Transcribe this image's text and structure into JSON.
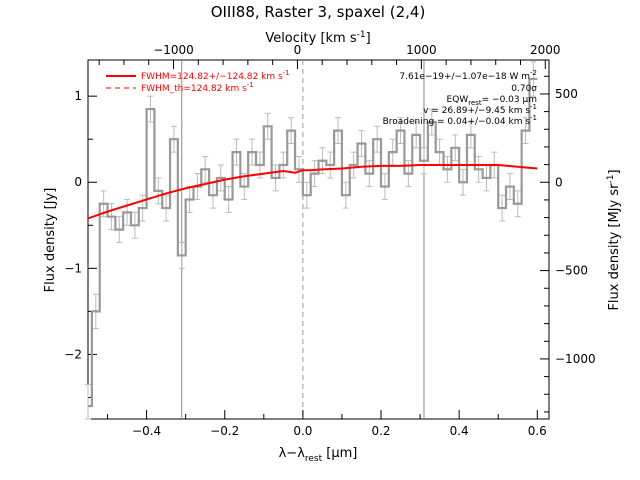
{
  "chart_data": {
    "type": "line",
    "title": "OIII88, Raster 3, spaxel (2,4)",
    "top_axis_label": "Velocity [km s",
    "top_axis_label_sup": "-1",
    "top_axis_label_end": "]",
    "xlabel_main": "λ−λ",
    "xlabel_sub": "rest",
    "xlabel_unit": " [μm]",
    "ylabel_left": "Flux density [Jy]",
    "ylabel_right": "Flux density [MJy sr",
    "ylabel_right_sup": "-1",
    "ylabel_right_end": "]",
    "xlim": [
      -0.55,
      0.63
    ],
    "ylim": [
      -2.75,
      1.42
    ],
    "right_ylim": [
      -1340,
      692
    ],
    "velocity_range": [
      -1690,
      2030
    ],
    "x_ticks": [
      -0.4,
      -0.2,
      0.0,
      0.2,
      0.4,
      0.6
    ],
    "x_tick_labels": [
      "−0.4",
      "−0.2",
      "0.0",
      "0.2",
      "0.4",
      "0.6"
    ],
    "y_ticks": [
      -2,
      -1,
      0,
      1
    ],
    "y_tick_labels": [
      "−2",
      "−1",
      "0",
      "1"
    ],
    "right_y_ticks": [
      -1000,
      -500,
      0,
      500
    ],
    "right_y_tick_labels": [
      "−1000",
      "−500",
      "0",
      "500"
    ],
    "velocity_ticks": [
      -1000,
      0,
      1000,
      2000
    ],
    "velocity_tick_labels": [
      "−1000",
      "0",
      "1000",
      "2000"
    ],
    "vertical_lines": [
      -0.31,
      0.31
    ],
    "center_line": 0.0,
    "legend": [
      {
        "label": "FWHM=124.82+/−124.82 km s",
        "sup": "-1",
        "style": "solid",
        "color": "#ff0000"
      },
      {
        "label": "FWHM_th=124.82 km s",
        "sup": "-1",
        "style": "dashed",
        "color": "#ff0000"
      }
    ],
    "annotations": [
      "7.61e−19+/−1.07e−18 W m",
      "0.70σ",
      "EQW",
      "= −0.03 μm",
      "v = 26.89+/−9.45 km s",
      "Broadening = 0.04+/−0.04 km s"
    ],
    "annotation_sups": [
      "-2",
      "",
      "",
      "",
      "-1",
      "-1"
    ],
    "annotation_sub": "rest",
    "data_series": {
      "name": "Flux",
      "color": "#999999",
      "x": [
        -0.55,
        -0.53,
        -0.51,
        -0.49,
        -0.47,
        -0.45,
        -0.43,
        -0.41,
        -0.39,
        -0.37,
        -0.35,
        -0.33,
        -0.31,
        -0.29,
        -0.27,
        -0.25,
        -0.23,
        -0.21,
        -0.19,
        -0.17,
        -0.15,
        -0.13,
        -0.11,
        -0.09,
        -0.07,
        -0.05,
        -0.03,
        -0.01,
        0.01,
        0.03,
        0.05,
        0.07,
        0.09,
        0.11,
        0.13,
        0.15,
        0.17,
        0.19,
        0.21,
        0.23,
        0.25,
        0.27,
        0.29,
        0.31,
        0.33,
        0.35,
        0.37,
        0.39,
        0.41,
        0.43,
        0.45,
        0.47,
        0.49,
        0.51,
        0.53,
        0.55,
        0.57,
        0.59
      ],
      "y": [
        -2.6,
        -1.5,
        -0.25,
        -0.4,
        -0.55,
        -0.35,
        -0.5,
        -0.3,
        0.85,
        -0.1,
        -0.3,
        0.5,
        -0.85,
        -0.2,
        -0.05,
        0.15,
        -0.15,
        0.05,
        -0.2,
        0.35,
        -0.05,
        0.35,
        0.2,
        0.65,
        0.05,
        0.2,
        0.6,
        0.15,
        -0.15,
        0.1,
        0.25,
        0.2,
        0.6,
        -0.15,
        0.2,
        0.45,
        0.1,
        0.5,
        -0.05,
        0.35,
        0.6,
        0.1,
        0.55,
        0.25,
        0.7,
        0.35,
        0.15,
        0.4,
        0.0,
        0.55,
        0.15,
        0.05,
        0.2,
        -0.3,
        -0.05,
        -0.25,
        0.6,
        1.2
      ],
      "errors": [
        0.25,
        0.2,
        0.15,
        0.15,
        0.15,
        0.15,
        0.15,
        0.15,
        0.15,
        0.15,
        0.15,
        0.15,
        0.15,
        0.15,
        0.15,
        0.15,
        0.15,
        0.15,
        0.15,
        0.15,
        0.15,
        0.15,
        0.15,
        0.15,
        0.15,
        0.15,
        0.15,
        0.15,
        0.15,
        0.15,
        0.15,
        0.15,
        0.15,
        0.15,
        0.15,
        0.15,
        0.15,
        0.15,
        0.15,
        0.15,
        0.15,
        0.15,
        0.15,
        0.15,
        0.15,
        0.15,
        0.15,
        0.15,
        0.15,
        0.15,
        0.15,
        0.15,
        0.15,
        0.15,
        0.15,
        0.15,
        0.15,
        0.2
      ]
    },
    "fit_series": {
      "name": "Fit",
      "color": "#ff0000",
      "x": [
        -0.55,
        -0.5,
        -0.45,
        -0.4,
        -0.35,
        -0.3,
        -0.25,
        -0.2,
        -0.15,
        -0.1,
        -0.05,
        -0.02,
        0.0,
        0.02,
        0.05,
        0.1,
        0.15,
        0.2,
        0.25,
        0.3,
        0.35,
        0.4,
        0.45,
        0.5,
        0.55,
        0.6
      ],
      "y": [
        -0.42,
        -0.34,
        -0.27,
        -0.2,
        -0.13,
        -0.07,
        -0.02,
        0.03,
        0.07,
        0.1,
        0.13,
        0.11,
        0.14,
        0.14,
        0.15,
        0.16,
        0.18,
        0.19,
        0.19,
        0.2,
        0.2,
        0.2,
        0.2,
        0.2,
        0.18,
        0.16
      ]
    }
  }
}
